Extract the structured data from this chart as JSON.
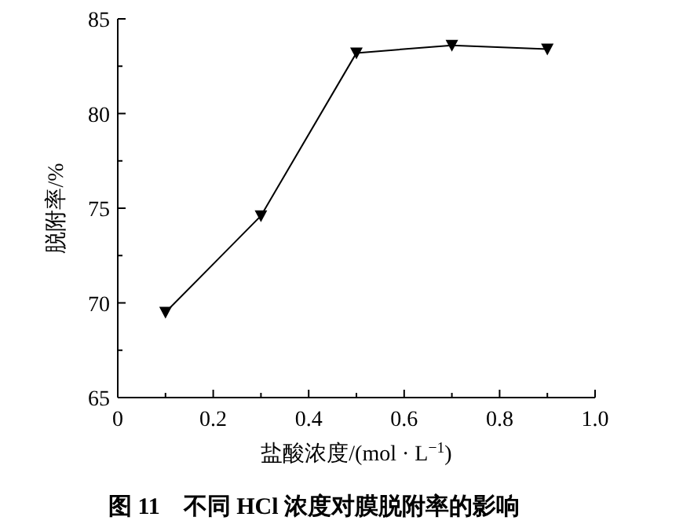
{
  "chart_data": {
    "type": "line",
    "title": "图 11　不同 HCl 浓度对膜脱附率的影响",
    "xlabel": "盐酸浓度/(mol · L$^{−1}$)",
    "ylabel": "脱附率/%",
    "x": [
      0.1,
      0.3,
      0.5,
      0.7,
      0.9
    ],
    "series": [
      {
        "color": "#000000",
        "values": [
          69.5,
          74.6,
          83.2,
          83.6,
          83.4
        ]
      }
    ],
    "xlim": [
      0,
      1.0
    ],
    "xticks": [
      0,
      0.2,
      0.4,
      0.6,
      0.8,
      {
        "value": 1.0,
        "label": "1.0"
      },
      {
        "value": 0.1,
        "label": null
      },
      {
        "value": 0.3,
        "label": null
      },
      {
        "value": 0.5,
        "label": null
      },
      {
        "value": 0.7,
        "label": null
      },
      {
        "value": 0.9,
        "label": null
      }
    ],
    "ylim": [
      65,
      85
    ],
    "yticks": [
      65,
      70,
      75,
      80,
      85,
      {
        "value": 67.5,
        "label": null
      },
      {
        "value": 72.5,
        "label": null
      },
      {
        "value": 77.5,
        "label": null
      },
      {
        "value": 82.5,
        "label": null
      }
    ],
    "marker": "triangle",
    "line_style": "solid",
    "grid": false
  }
}
